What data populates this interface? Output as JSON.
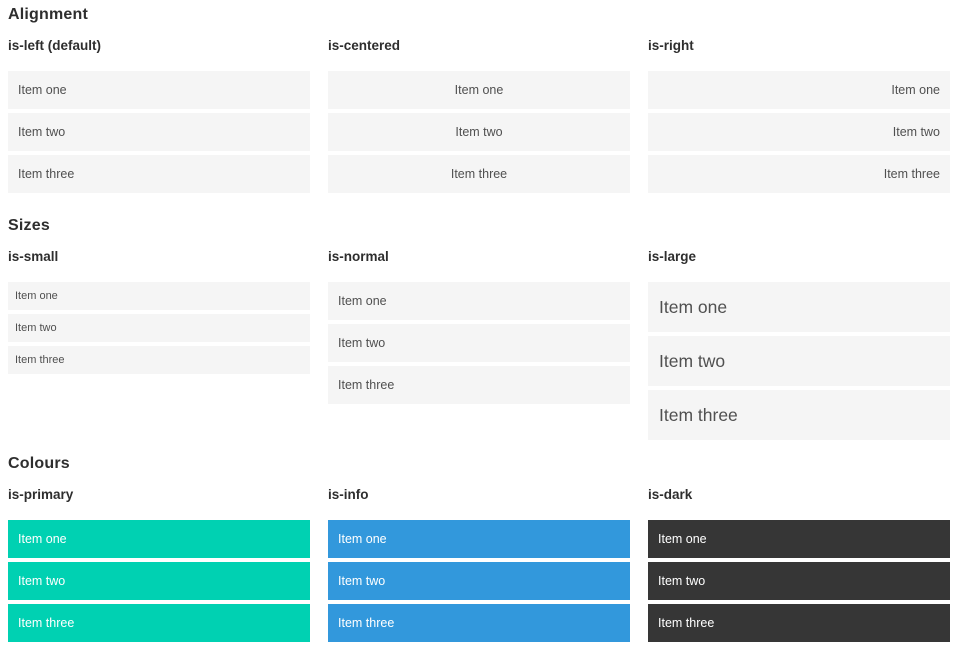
{
  "colors": {
    "primary": "#00d1b2",
    "info": "#3298dc",
    "dark": "#363636",
    "item_background": "#f5f5f5",
    "item_text_on_colour": "#ffffff"
  },
  "sections": [
    {
      "title": "Alignment",
      "groups": [
        {
          "label": "is-left (default)",
          "items": [
            "Item one",
            "Item two",
            "Item three"
          ]
        },
        {
          "label": "is-centered",
          "items": [
            "Item one",
            "Item two",
            "Item three"
          ]
        },
        {
          "label": "is-right",
          "items": [
            "Item one",
            "Item two",
            "Item three"
          ]
        }
      ]
    },
    {
      "title": "Sizes",
      "groups": [
        {
          "label": "is-small",
          "items": [
            "Item one",
            "Item two",
            "Item three"
          ]
        },
        {
          "label": "is-normal",
          "items": [
            "Item one",
            "Item two",
            "Item three"
          ]
        },
        {
          "label": "is-large",
          "items": [
            "Item one",
            "Item two",
            "Item three"
          ]
        }
      ]
    },
    {
      "title": "Colours",
      "groups": [
        {
          "label": "is-primary",
          "items": [
            "Item one",
            "Item two",
            "Item three"
          ]
        },
        {
          "label": "is-info",
          "items": [
            "Item one",
            "Item two",
            "Item three"
          ]
        },
        {
          "label": "is-dark",
          "items": [
            "Item one",
            "Item two",
            "Item three"
          ]
        }
      ]
    }
  ]
}
